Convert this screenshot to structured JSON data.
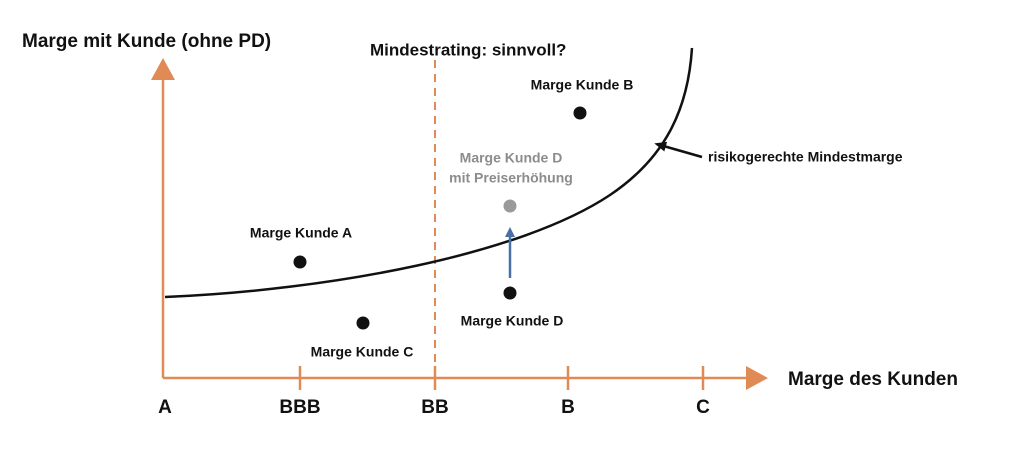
{
  "y_axis_label": "Marge mit Kunde (ohne PD)",
  "x_axis_label": "Marge des Kunden",
  "x_ticks": [
    "A",
    "BBB",
    "BB",
    "B",
    "C"
  ],
  "threshold_label": "Mindestrating: sinnvoll?",
  "curve_label": "risikogerechte Mindestmarge",
  "points": [
    {
      "label": "Marge Kunde A"
    },
    {
      "label": "Marge Kunde B"
    },
    {
      "label": "Marge Kunde C"
    },
    {
      "label": "Marge Kunde D"
    }
  ],
  "adjusted_point": {
    "label_lines": [
      "Marge Kunde D",
      "mit Preiserhöhung"
    ]
  }
}
